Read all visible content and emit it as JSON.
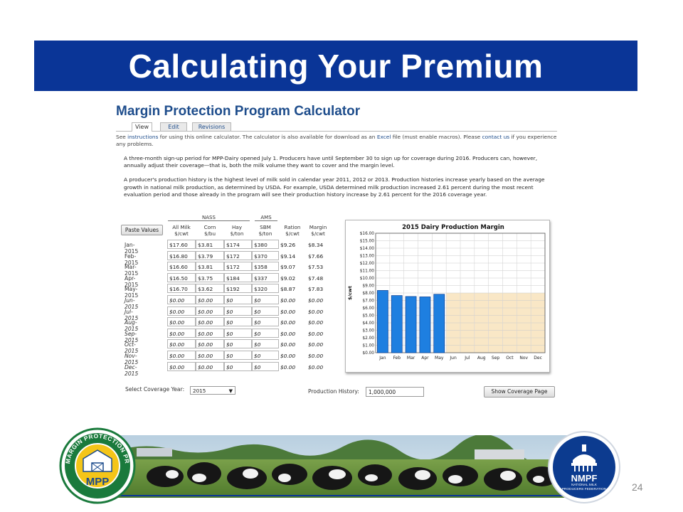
{
  "slide": {
    "title": "Calculating Your Premium",
    "page_number": "24"
  },
  "calculator": {
    "title": "Margin Protection Program Calculator",
    "tabs": [
      {
        "label": "View",
        "active": true
      },
      {
        "label": "Edit",
        "active": false
      },
      {
        "label": "Revisions",
        "active": false
      }
    ],
    "intro": {
      "t1": "See ",
      "link1": "instructions",
      "t2": " for using this online calculator. The calculator is also available for download as an ",
      "link2": "Excel",
      "t3": " file (must enable macros). Please ",
      "link3": "contact us",
      "t4": " if you experience any problems."
    },
    "paragraph1": "A three-month sign-up period for MPP-Dairy opened July 1. Producers have until September 30 to sign up for coverage during 2016. Producers can, however, annually adjust their coverage—that is, both the milk volume they want to cover and the margin level.",
    "paragraph2": "A producer's production history is the highest level of milk sold in calendar year 2011, 2012 or 2013. Production histories increase yearly based on the average growth in national milk production, as determined by USDA. For example, USDA determined milk production increased 2.61 percent during the most recent evaluation period and those already in the program will see their production history increase by 2.61 percent for the 2016 coverage year.",
    "paste_button": "Paste Values",
    "group_nass": "NASS",
    "group_ams": "AMS",
    "columns": [
      {
        "l1": "All Milk",
        "l2": "$/cwt"
      },
      {
        "l1": "Corn",
        "l2": "$/bu"
      },
      {
        "l1": "Hay",
        "l2": "$/ton"
      },
      {
        "l1": "SBM",
        "l2": "$/ton"
      },
      {
        "l1": "Ration",
        "l2": "$/cwt"
      },
      {
        "l1": "Margin",
        "l2": "$/cwt"
      }
    ],
    "rows": [
      {
        "month": "Jan-2015",
        "milk": "$17.60",
        "corn": "$3.81",
        "hay": "$174",
        "sbm": "$380",
        "ration": "$9.26",
        "margin": "$8.34"
      },
      {
        "month": "Feb-2015",
        "milk": "$16.80",
        "corn": "$3.79",
        "hay": "$172",
        "sbm": "$370",
        "ration": "$9.14",
        "margin": "$7.66"
      },
      {
        "month": "Mar-2015",
        "milk": "$16.60",
        "corn": "$3.81",
        "hay": "$172",
        "sbm": "$358",
        "ration": "$9.07",
        "margin": "$7.53"
      },
      {
        "month": "Apr-2015",
        "milk": "$16.50",
        "corn": "$3.75",
        "hay": "$184",
        "sbm": "$337",
        "ration": "$9.02",
        "margin": "$7.48"
      },
      {
        "month": "May-2015",
        "milk": "$16.70",
        "corn": "$3.62",
        "hay": "$192",
        "sbm": "$320",
        "ration": "$8.87",
        "margin": "$7.83"
      },
      {
        "month": "Jun-2015",
        "milk": "$0.00",
        "corn": "$0.00",
        "hay": "$0",
        "sbm": "$0",
        "ration": "$0.00",
        "margin": "$0.00"
      },
      {
        "month": "Jul-2015",
        "milk": "$0.00",
        "corn": "$0.00",
        "hay": "$0",
        "sbm": "$0",
        "ration": "$0.00",
        "margin": "$0.00"
      },
      {
        "month": "Aug-2015",
        "milk": "$0.00",
        "corn": "$0.00",
        "hay": "$0",
        "sbm": "$0",
        "ration": "$0.00",
        "margin": "$0.00"
      },
      {
        "month": "Sep-2015",
        "milk": "$0.00",
        "corn": "$0.00",
        "hay": "$0",
        "sbm": "$0",
        "ration": "$0.00",
        "margin": "$0.00"
      },
      {
        "month": "Oct-2015",
        "milk": "$0.00",
        "corn": "$0.00",
        "hay": "$0",
        "sbm": "$0",
        "ration": "$0.00",
        "margin": "$0.00"
      },
      {
        "month": "Nov-2015",
        "milk": "$0.00",
        "corn": "$0.00",
        "hay": "$0",
        "sbm": "$0",
        "ration": "$0.00",
        "margin": "$0.00"
      },
      {
        "month": "Dec-2015",
        "milk": "$0.00",
        "corn": "$0.00",
        "hay": "$0",
        "sbm": "$0",
        "ration": "$0.00",
        "margin": "$0.00"
      }
    ],
    "coverage_year_label": "Select Coverage Year:",
    "coverage_year_value": "2015",
    "production_history_label": "Production History:",
    "production_history_value": "1,000,000",
    "show_button": "Show Coverage Page"
  },
  "logos": {
    "mpp_ring_text": "MARGIN PROTECTION PROGRAM",
    "mpp_abbrev": "MPP",
    "nmpf_abbrev": "NMPF",
    "nmpf_sub1": "NATIONAL MILK",
    "nmpf_sub2": "PRODUCERS FEDERATION"
  },
  "colors": {
    "banner": "#0a3597",
    "bar_fill": "#1e7fe0",
    "coverage_band": "#f9e7c6",
    "title_blue": "#1e4d8c"
  },
  "chart_data": {
    "type": "bar",
    "title": "2015 Dairy Production Margin",
    "ylabel": "$/cwt",
    "xlabel": "",
    "categories": [
      "Jan",
      "Feb",
      "Mar",
      "Apr",
      "May",
      "Jun",
      "Jul",
      "Aug",
      "Sep",
      "Oct",
      "Nov",
      "Dec"
    ],
    "values": [
      8.34,
      7.66,
      7.53,
      7.48,
      7.83,
      0,
      0,
      0,
      0,
      0,
      0,
      0
    ],
    "coverage_level": 8.0,
    "coverage_from_category": "Jun",
    "yticks": [
      "$0.00",
      "$1.00",
      "$2.00",
      "$3.00",
      "$4.00",
      "$5.00",
      "$6.00",
      "$7.00",
      "$8.00",
      "$9.00",
      "$10.00",
      "$11.00",
      "$12.00",
      "$13.00",
      "$14.00",
      "$15.00",
      "$16.00"
    ],
    "ylim": [
      0,
      16
    ],
    "grid": true
  }
}
